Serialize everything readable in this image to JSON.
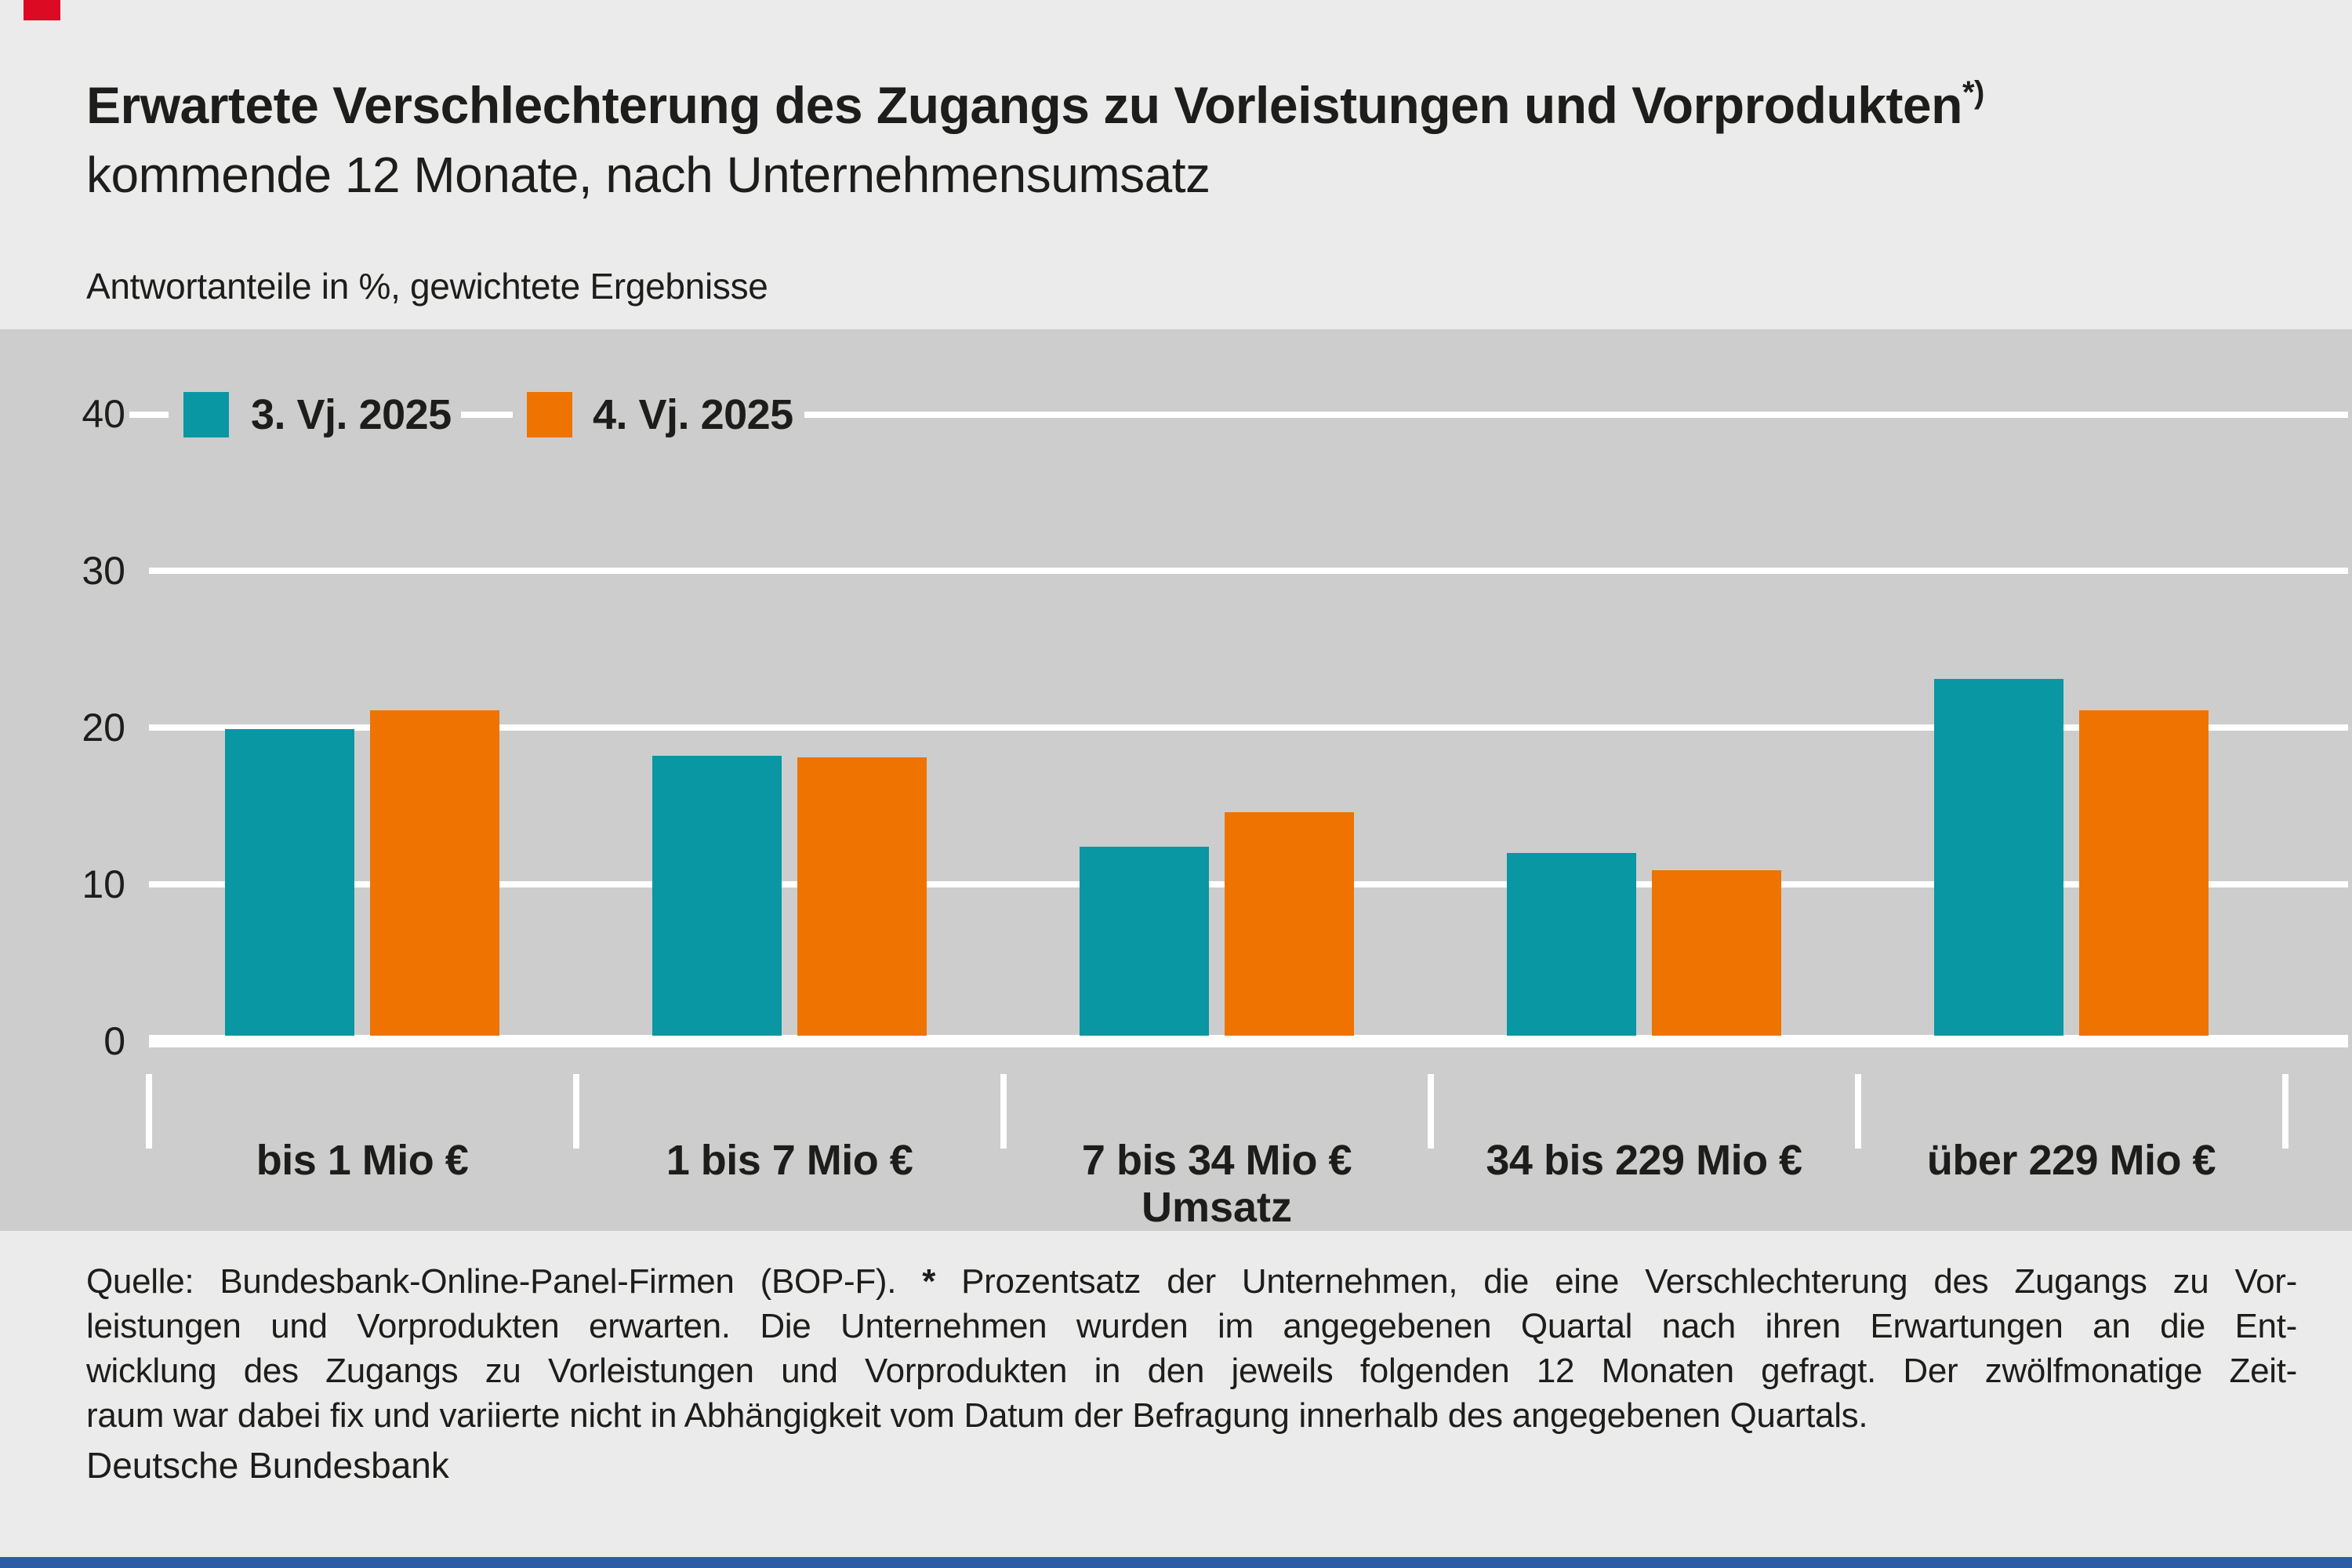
{
  "header": {
    "title": "Erwartete Verschlechterung des Zugangs zu Vorleistungen und Vorprodukten",
    "title_superscript": "*)",
    "subtitle": "kommende 12 Monate, nach Unternehmensumsatz",
    "unit_note": "Antwortanteile in %, gewichtete Ergebnisse"
  },
  "chart_data": {
    "type": "bar",
    "categories": [
      "bis 1 Mio €",
      "1 bis 7 Mio €",
      "7 bis 34 Mio €",
      "34 bis 229 Mio €",
      "über 229 Mio €"
    ],
    "series": [
      {
        "name": "3. Vj. 2025",
        "color": "#0897a3",
        "values": [
          19.9,
          18.2,
          12.4,
          12.0,
          23.1
        ]
      },
      {
        "name": "4. Vj. 2025",
        "color": "#ee7300",
        "values": [
          21.1,
          18.1,
          14.6,
          10.9,
          21.1
        ]
      }
    ],
    "xlabel": "Umsatz",
    "ylabel": "Antwortanteile in %",
    "ylim": [
      0,
      40
    ],
    "yticks": [
      0,
      10,
      20,
      30,
      40
    ],
    "grid": true,
    "legend_position": "top-left",
    "plot_background": "#cdcdcd",
    "gridline_color": "#ffffff"
  },
  "footer": {
    "source_prefix": "Quelle: Bundesbank-Online-Panel-Firmen (BOP-F). ",
    "asterisk": "*",
    "line1_rest": " Prozentsatz der Unternehmen, die eine Verschlechterung des Zugangs zu Vor-",
    "lines": [
      "leistungen und Vorprodukten erwarten. Die Unternehmen wurden im angegebenen Quartal nach ihren Erwartungen an die Ent-",
      "wicklung des Zugangs zu Vorleistungen und Vorprodukten in den jeweils folgenden 12 Monaten gefragt. Der zwölfmonatige Zeit-",
      "raum war dabei fix und variierte nicht in Abhängigkeit vom Datum der Befragung innerhalb des angegebenen Quartals."
    ],
    "publisher": "Deutsche Bundesbank"
  },
  "colors": {
    "page_background": "#ebebeb",
    "accent_red": "#dc0a23",
    "bottom_bar_blue": "#2d5ca7",
    "text": "#1d1d1b"
  }
}
